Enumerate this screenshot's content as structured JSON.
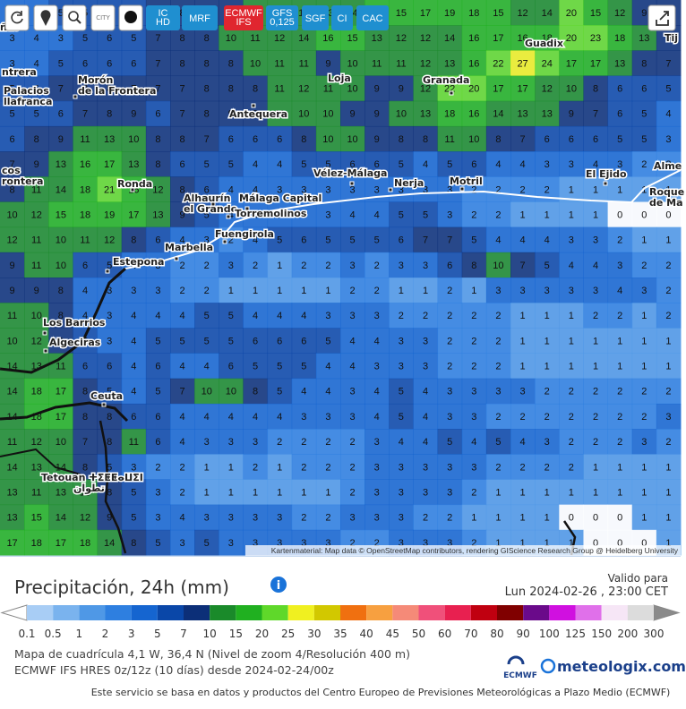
{
  "toolbar": {
    "icon_label": "CITY",
    "buttons": [
      [
        "IC",
        "HD"
      ],
      [
        "MRF"
      ],
      [
        "ECMWF",
        "IFS"
      ],
      [
        "GFS",
        "0,125"
      ],
      [
        "SGF"
      ],
      [
        "CI"
      ],
      [
        "CAC"
      ]
    ],
    "active": 2
  },
  "map": {
    "grid": [
      [
        4,
        4,
        5,
        5,
        6,
        6,
        7,
        8,
        9,
        9,
        10,
        11,
        12,
        13,
        14,
        15,
        15,
        17,
        19,
        18,
        15,
        12,
        14,
        20,
        15,
        12,
        9,
        8
      ],
      [
        3,
        4,
        3,
        5,
        6,
        5,
        7,
        8,
        8,
        10,
        11,
        12,
        14,
        16,
        15,
        13,
        12,
        12,
        14,
        16,
        17,
        16,
        18,
        20,
        23,
        18,
        13,
        9
      ],
      [
        3,
        4,
        5,
        6,
        6,
        6,
        7,
        8,
        8,
        8,
        10,
        11,
        11,
        9,
        10,
        11,
        11,
        12,
        13,
        16,
        22,
        27,
        24,
        17,
        17,
        13,
        8,
        7
      ],
      [
        5,
        6,
        7,
        8,
        8,
        7,
        7,
        7,
        8,
        8,
        8,
        11,
        12,
        11,
        10,
        9,
        9,
        12,
        22,
        20,
        17,
        17,
        12,
        10,
        8,
        6,
        6,
        5
      ],
      [
        5,
        5,
        6,
        7,
        8,
        9,
        6,
        7,
        8,
        9,
        9,
        11,
        10,
        10,
        9,
        9,
        10,
        13,
        18,
        16,
        14,
        13,
        13,
        9,
        7,
        6,
        5,
        4
      ],
      [
        6,
        8,
        9,
        11,
        13,
        10,
        8,
        8,
        7,
        6,
        6,
        6,
        8,
        10,
        10,
        9,
        8,
        8,
        11,
        10,
        8,
        7,
        6,
        6,
        6,
        5,
        5,
        3
      ],
      [
        7,
        9,
        13,
        16,
        17,
        13,
        8,
        6,
        5,
        5,
        4,
        4,
        5,
        5,
        6,
        6,
        5,
        4,
        5,
        6,
        4,
        4,
        3,
        3,
        4,
        3,
        2,
        2
      ],
      [
        8,
        11,
        14,
        18,
        21,
        16,
        12,
        8,
        6,
        4,
        4,
        3,
        3,
        3,
        3,
        3,
        3,
        3,
        3,
        2,
        2,
        2,
        2,
        1,
        1,
        1,
        1,
        1
      ],
      [
        10,
        12,
        15,
        18,
        19,
        17,
        13,
        9,
        5,
        4,
        4,
        3,
        3,
        3,
        4,
        4,
        5,
        5,
        3,
        2,
        2,
        1,
        1,
        1,
        1,
        0,
        0,
        0
      ],
      [
        12,
        11,
        10,
        11,
        12,
        8,
        6,
        4,
        3,
        2,
        4,
        5,
        6,
        5,
        5,
        5,
        6,
        7,
        7,
        5,
        4,
        4,
        4,
        3,
        3,
        2,
        1,
        1
      ],
      [
        9,
        11,
        10,
        6,
        5,
        4,
        3,
        2,
        2,
        3,
        2,
        1,
        2,
        2,
        3,
        2,
        3,
        3,
        6,
        8,
        10,
        7,
        5,
        4,
        4,
        3,
        2,
        2
      ],
      [
        9,
        9,
        8,
        4,
        3,
        3,
        3,
        2,
        2,
        1,
        1,
        1,
        1,
        1,
        2,
        2,
        1,
        1,
        2,
        1,
        3,
        3,
        3,
        3,
        3,
        4,
        3,
        2
      ],
      [
        11,
        10,
        8,
        4,
        3,
        4,
        4,
        4,
        5,
        5,
        4,
        4,
        4,
        3,
        3,
        3,
        2,
        2,
        2,
        2,
        2,
        1,
        1,
        1,
        2,
        2,
        1,
        2
      ],
      [
        10,
        12,
        9,
        5,
        3,
        4,
        5,
        5,
        5,
        5,
        6,
        6,
        6,
        5,
        4,
        4,
        3,
        3,
        2,
        2,
        2,
        1,
        1,
        1,
        1,
        1,
        1,
        1
      ],
      [
        14,
        13,
        11,
        6,
        6,
        4,
        6,
        4,
        4,
        6,
        5,
        5,
        5,
        4,
        4,
        3,
        3,
        3,
        2,
        2,
        2,
        1,
        1,
        1,
        1,
        1,
        1,
        1
      ],
      [
        14,
        18,
        17,
        8,
        5,
        4,
        5,
        7,
        10,
        10,
        8,
        5,
        4,
        4,
        3,
        4,
        5,
        4,
        3,
        3,
        3,
        3,
        2,
        2,
        2,
        2,
        2,
        2
      ],
      [
        14,
        18,
        17,
        8,
        8,
        6,
        6,
        4,
        4,
        4,
        4,
        4,
        3,
        3,
        3,
        4,
        5,
        4,
        3,
        3,
        2,
        2,
        2,
        2,
        2,
        2,
        2,
        3
      ],
      [
        11,
        12,
        10,
        7,
        8,
        11,
        6,
        4,
        3,
        3,
        3,
        2,
        2,
        2,
        2,
        3,
        4,
        4,
        5,
        4,
        5,
        4,
        3,
        2,
        2,
        2,
        3,
        2
      ],
      [
        14,
        13,
        14,
        8,
        5,
        3,
        2,
        2,
        1,
        1,
        2,
        1,
        2,
        2,
        2,
        3,
        3,
        3,
        3,
        3,
        2,
        2,
        2,
        2,
        1,
        1,
        1,
        1
      ],
      [
        13,
        11,
        13,
        13,
        8,
        5,
        3,
        2,
        1,
        1,
        1,
        1,
        1,
        1,
        2,
        3,
        3,
        3,
        3,
        2,
        1,
        1,
        1,
        1,
        1,
        1,
        1,
        1
      ],
      [
        13,
        15,
        14,
        12,
        9,
        5,
        3,
        4,
        3,
        3,
        3,
        3,
        2,
        2,
        3,
        3,
        3,
        2,
        2,
        1,
        1,
        1,
        1,
        0,
        0,
        0,
        1,
        1
      ],
      [
        17,
        18,
        17,
        18,
        14,
        8,
        5,
        3,
        5,
        3,
        3,
        3,
        3,
        3,
        2,
        2,
        3,
        3,
        3,
        2,
        1,
        1,
        1,
        1,
        0,
        0,
        0,
        1
      ]
    ],
    "places": [
      [
        "ñas"
      ],
      [
        "ntrera"
      ],
      [
        "Morón",
        "de la Frontera"
      ],
      [
        "Palacios",
        "llafranca"
      ],
      [
        "Loja"
      ],
      [
        "Granada"
      ],
      [
        "Guadix"
      ],
      [
        "Antequera"
      ],
      [
        "Vélez-Málaga"
      ],
      [
        "Nerja"
      ],
      [
        "Motril"
      ],
      [
        "El Ejido"
      ],
      [
        "Alme"
      ],
      [
        "Roque",
        "de Ma"
      ],
      [
        "cos",
        "rontera"
      ],
      [
        "Ronda"
      ],
      [
        "Alhaurín",
        "el Grande"
      ],
      [
        "Málaga Capital"
      ],
      [
        "Torremolinos"
      ],
      [
        "Fuengirola"
      ],
      [
        "Marbella"
      ],
      [
        "Estepona"
      ],
      [
        "Los Barrios"
      ],
      [
        "Algeciras"
      ],
      [
        "Ceuta"
      ],
      [
        "Tetouan ⵜⵉⵟⵟⴰⵡⵉⵏ",
        "تطوان"
      ],
      [
        "Tij"
      ]
    ],
    "attribution": "Kartenmaterial: Map data © OpenStreetMap contributors, rendering GIScience Research Group @ Heidelberg University"
  },
  "legend": {
    "ticks": [
      0.1,
      0.5,
      1,
      2,
      3,
      5,
      7,
      10,
      15,
      20,
      25,
      30,
      35,
      40,
      45,
      50,
      60,
      70,
      80,
      90,
      100,
      125,
      150,
      200,
      300
    ],
    "colors": [
      "#a8cdf5",
      "#7ab3ee",
      "#4f98e6",
      "#2e7fe0",
      "#1565d0",
      "#0a47a8",
      "#0c2f78",
      "#1a8a2a",
      "#20b020",
      "#5fd82a",
      "#f0f020",
      "#d2c800",
      "#f07010",
      "#f7a040",
      "#f58a78",
      "#f0507a",
      "#e82050",
      "#c00010",
      "#800000",
      "#6a0a8a",
      "#d010e0",
      "#e070ea",
      "#f6e6f6",
      "#dcdcdc"
    ],
    "below_color": "#ffffff",
    "above_color": "#8a8a8a"
  },
  "panel": {
    "title": "Precipitación, 24h (mm)",
    "valid_label": "Valido para",
    "valid_time": "Lun 2024-02-26 , 23:00 CET",
    "info_line1": "Mapa de cuadrícula 4,1 W, 36,4 N (Nivel de zoom 4/Resolución 400 m)",
    "info_line2": "ECMWF IFS HRES 0z/12z (10 días) desde 2024-02-24/00z",
    "logo_ecmwf": "ECMWF",
    "logo_site": "meteologix.com",
    "footer": "Este servicio se basa en datos y productos del Centro Europeo de Previsiones Meteorológicas a Plazo Medio (ECMWF)"
  }
}
